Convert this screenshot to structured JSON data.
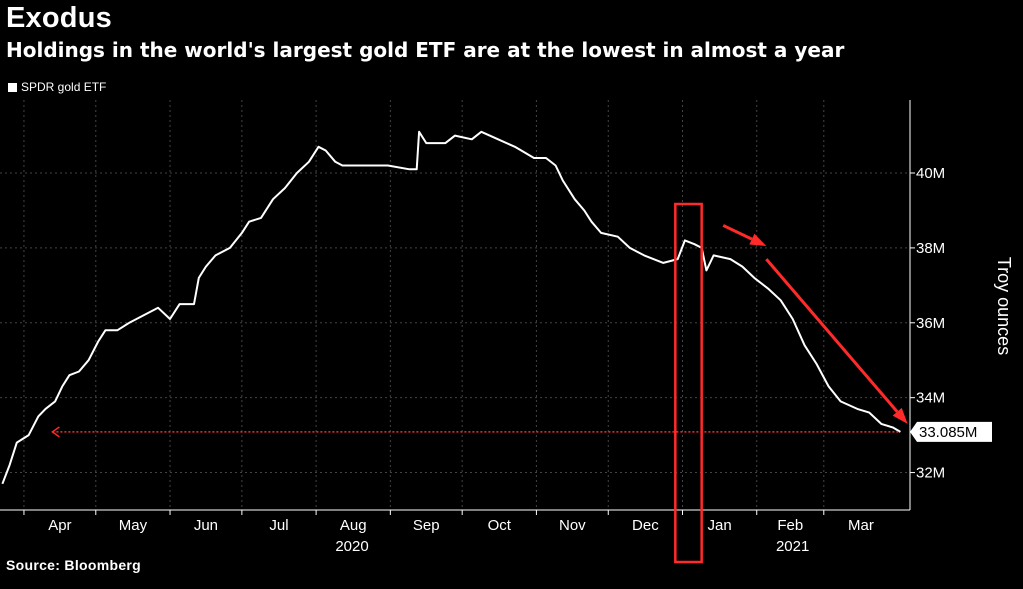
{
  "chart_data": {
    "type": "line",
    "title": "Exodus",
    "subtitle": "Holdings in the world's largest gold ETF are at the lowest in almost a year",
    "ylabel": "Troy ounces",
    "source": "Source: Bloomberg",
    "series": [
      {
        "name": "SPDR gold ETF",
        "color": "#ffffff",
        "points": [
          [
            "2020-03-23",
            31.7
          ],
          [
            "2020-03-26",
            32.2
          ],
          [
            "2020-03-29",
            32.8
          ],
          [
            "2020-04-03",
            33.0
          ],
          [
            "2020-04-07",
            33.5
          ],
          [
            "2020-04-10",
            33.7
          ],
          [
            "2020-04-14",
            33.9
          ],
          [
            "2020-04-17",
            34.3
          ],
          [
            "2020-04-20",
            34.6
          ],
          [
            "2020-04-24",
            34.7
          ],
          [
            "2020-04-28",
            35.0
          ],
          [
            "2020-05-02",
            35.5
          ],
          [
            "2020-05-05",
            35.8
          ],
          [
            "2020-05-10",
            35.8
          ],
          [
            "2020-05-15",
            36.0
          ],
          [
            "2020-05-21",
            36.2
          ],
          [
            "2020-05-27",
            36.4
          ],
          [
            "2020-06-01",
            36.1
          ],
          [
            "2020-06-05",
            36.5
          ],
          [
            "2020-06-11",
            36.5
          ],
          [
            "2020-06-13",
            37.2
          ],
          [
            "2020-06-16",
            37.5
          ],
          [
            "2020-06-20",
            37.8
          ],
          [
            "2020-06-26",
            38.0
          ],
          [
            "2020-07-01",
            38.4
          ],
          [
            "2020-07-04",
            38.7
          ],
          [
            "2020-07-09",
            38.8
          ],
          [
            "2020-07-14",
            39.3
          ],
          [
            "2020-07-19",
            39.6
          ],
          [
            "2020-07-24",
            40.0
          ],
          [
            "2020-07-29",
            40.3
          ],
          [
            "2020-08-02",
            40.7
          ],
          [
            "2020-08-05",
            40.6
          ],
          [
            "2020-08-09",
            40.3
          ],
          [
            "2020-08-12",
            40.2
          ],
          [
            "2020-08-16",
            40.2
          ],
          [
            "2020-08-24",
            40.2
          ],
          [
            "2020-08-31",
            40.2
          ],
          [
            "2020-09-09",
            40.1
          ],
          [
            "2020-09-12",
            40.1
          ],
          [
            "2020-09-13",
            41.1
          ],
          [
            "2020-09-16",
            40.8
          ],
          [
            "2020-09-24",
            40.8
          ],
          [
            "2020-09-28",
            41.0
          ],
          [
            "2020-10-05",
            40.9
          ],
          [
            "2020-10-09",
            41.1
          ],
          [
            "2020-10-16",
            40.9
          ],
          [
            "2020-10-23",
            40.7
          ],
          [
            "2020-10-31",
            40.4
          ],
          [
            "2020-11-05",
            40.4
          ],
          [
            "2020-11-09",
            40.2
          ],
          [
            "2020-11-12",
            39.8
          ],
          [
            "2020-11-17",
            39.3
          ],
          [
            "2020-11-21",
            39.0
          ],
          [
            "2020-11-24",
            38.7
          ],
          [
            "2020-11-28",
            38.4
          ],
          [
            "2020-12-05",
            38.3
          ],
          [
            "2020-12-10",
            38.0
          ],
          [
            "2020-12-16",
            37.8
          ],
          [
            "2020-12-24",
            37.6
          ],
          [
            "2020-12-30",
            37.7
          ],
          [
            "2021-01-02",
            38.2
          ],
          [
            "2021-01-06",
            38.1
          ],
          [
            "2021-01-09",
            38.0
          ],
          [
            "2021-01-11",
            37.4
          ],
          [
            "2021-01-14",
            37.8
          ],
          [
            "2021-01-21",
            37.7
          ],
          [
            "2021-01-26",
            37.5
          ],
          [
            "2021-01-31",
            37.2
          ],
          [
            "2021-02-06",
            36.9
          ],
          [
            "2021-02-11",
            36.6
          ],
          [
            "2021-02-16",
            36.1
          ],
          [
            "2021-02-21",
            35.4
          ],
          [
            "2021-02-26",
            34.9
          ],
          [
            "2021-03-03",
            34.3
          ],
          [
            "2021-03-08",
            33.9
          ],
          [
            "2021-03-15",
            33.7
          ],
          [
            "2021-03-20",
            33.6
          ],
          [
            "2021-03-25",
            33.3
          ],
          [
            "2021-03-30",
            33.2
          ],
          [
            "2021-04-02",
            33.085
          ]
        ]
      }
    ],
    "x_range": [
      "2020-03-22",
      "2021-04-06"
    ],
    "ylim": [
      31,
      41.95
    ],
    "y_axis_side": "right",
    "y_ticks": [
      32,
      34,
      36,
      38,
      40
    ],
    "y_tick_labels": [
      "32M",
      "34M",
      "36M",
      "38M",
      "40M"
    ],
    "x_ticks": [
      "2020-04-01",
      "2020-05-01",
      "2020-06-01",
      "2020-07-01",
      "2020-08-01",
      "2020-09-01",
      "2020-10-01",
      "2020-11-01",
      "2020-12-01",
      "2021-01-01",
      "2021-02-01",
      "2021-03-01"
    ],
    "x_tick_labels": [
      "Apr",
      "May",
      "Jun",
      "Jul",
      "Aug",
      "Sep",
      "Oct",
      "Nov",
      "Dec",
      "Jan",
      "Feb",
      "Mar"
    ],
    "year_labels": [
      {
        "anchor": "2020-08-01",
        "text": "2020"
      },
      {
        "anchor": "2021-02-01",
        "text": "2021"
      }
    ],
    "last_value_label": "33.085M",
    "grid": true,
    "gridline_color": "#444444",
    "background": "#000000",
    "annotations": {
      "color": "#ff2a2a",
      "dotted_reference_value": 33.085,
      "highlight_box_x_range": [
        "2020-12-29",
        "2021-01-09"
      ],
      "arrows": [
        {
          "from": [
            "2021-01-18",
            38.6
          ],
          "to": [
            "2021-02-05",
            38.05
          ]
        },
        {
          "from": [
            "2021-02-05",
            37.7
          ],
          "to": [
            "2021-04-05",
            33.3
          ]
        }
      ]
    }
  }
}
